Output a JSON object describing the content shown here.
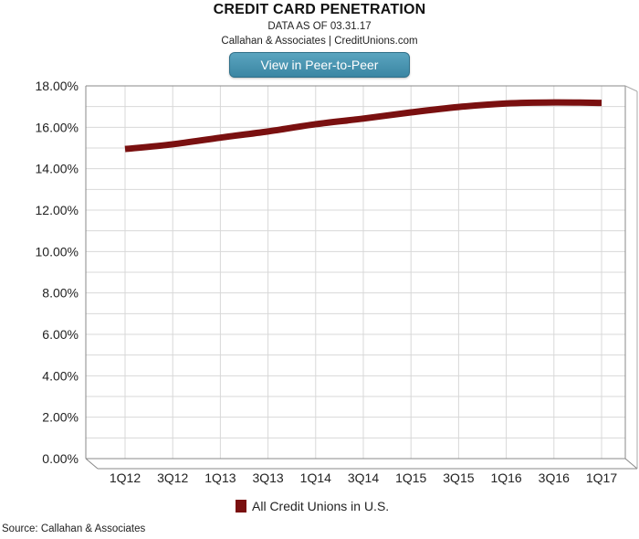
{
  "header": {
    "title": "CREDIT CARD PENETRATION",
    "data_as_of": "DATA AS OF 03.31.17",
    "credit": "Callahan & Associates | CreditUnions.com",
    "button_label": "View in Peer-to-Peer"
  },
  "source": "Source: Callahan & Associates",
  "chart_data": {
    "type": "line",
    "title": "CREDIT CARD PENETRATION",
    "categories": [
      "1Q12",
      "3Q12",
      "1Q13",
      "3Q13",
      "1Q14",
      "3Q14",
      "1Q15",
      "3Q15",
      "1Q16",
      "3Q16",
      "1Q17"
    ],
    "series": [
      {
        "name": "All Credit Unions in U.S.",
        "color": "#7a1010",
        "values": [
          14.95,
          15.18,
          15.5,
          15.8,
          16.15,
          16.42,
          16.72,
          16.98,
          17.15,
          17.2,
          17.18
        ]
      }
    ],
    "ylim": [
      0,
      18
    ],
    "y_ticks": [
      "0.00%",
      "2.00%",
      "4.00%",
      "6.00%",
      "8.00%",
      "10.00%",
      "12.00%",
      "14.00%",
      "16.00%",
      "18.00%"
    ],
    "y_tick_values": [
      0,
      2,
      4,
      6,
      8,
      10,
      12,
      14,
      16,
      18
    ],
    "grid": true,
    "legend_position": "bottom"
  }
}
